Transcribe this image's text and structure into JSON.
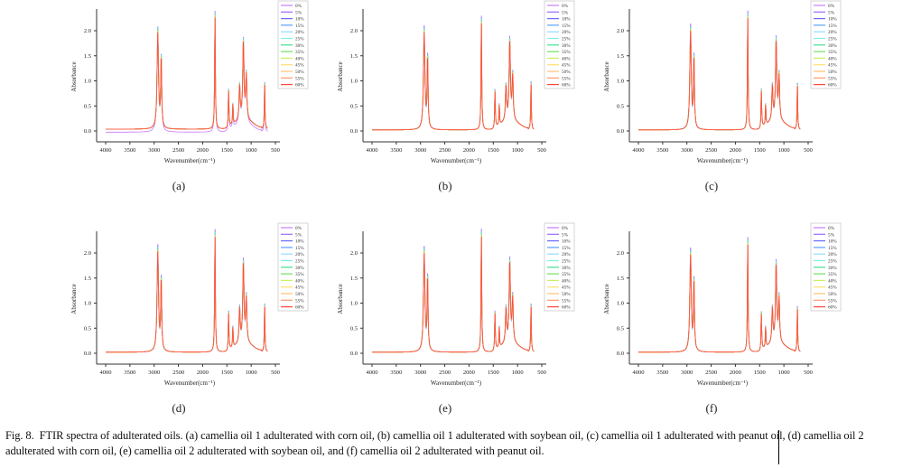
{
  "figure": {
    "caption_label": "Fig. 8.",
    "caption_text": "FTIR spectra of adulterated oils. (a) camellia oil 1 adulterated with corn oil, (b) camellia oil 1 adulterated with soybean oil, (c) camellia oil 1 adulterated with peanut oil, (d) camellia oil 2 adulterated with corn oil, (e) camellia oil 2 adulterated with soybean oil, and (f) camellia oil 2 adulterated with peanut oil."
  },
  "legend": [
    "0%",
    "5%",
    "10%",
    "15%",
    "20%",
    "25%",
    "30%",
    "35%",
    "40%",
    "45%",
    "50%",
    "55%",
    "60%"
  ],
  "series_colors": [
    "#c77dff",
    "#9b6bff",
    "#6a6bff",
    "#5aa0ff",
    "#8fdcff",
    "#7ff0e8",
    "#40e090",
    "#6fe060",
    "#c8f060",
    "#ffe070",
    "#ffc070",
    "#ff9a70",
    "#ff4a3a"
  ],
  "chart_data": [
    {
      "type": "line",
      "panel_label": "(a)",
      "xlabel": "Wavenumber(cm⁻¹)",
      "ylabel": "Absorbance",
      "xlim": [
        4000,
        500
      ],
      "ylim": [
        -0.2,
        2.4
      ],
      "xticks": [
        4000,
        3500,
        3000,
        2500,
        2000,
        1500,
        1000,
        500
      ],
      "yticks": [
        "0.0",
        "0.5",
        "1.0",
        "1.5",
        "2.0"
      ],
      "legend_position": "top-right",
      "baseline_shift_first": -0.06,
      "peaks": [
        [
          2925,
          1.95
        ],
        [
          2854,
          1.38
        ],
        [
          1745,
          2.3
        ],
        [
          1465,
          0.77
        ],
        [
          1377,
          0.45
        ],
        [
          1238,
          0.72
        ],
        [
          1160,
          1.55
        ],
        [
          1100,
          0.9
        ],
        [
          722,
          0.98
        ]
      ]
    },
    {
      "type": "line",
      "panel_label": "(b)",
      "xlabel": "Wavenumber(cm⁻¹)",
      "ylabel": "Absorbance",
      "xlim": [
        4000,
        500
      ],
      "ylim": [
        -0.2,
        2.4
      ],
      "xticks": [
        4000,
        3500,
        3000,
        2500,
        2000,
        1500,
        1000,
        500
      ],
      "yticks": [
        "0.0",
        "0.5",
        "1.0",
        "1.5",
        "2.0"
      ],
      "legend_position": "top-right",
      "baseline_shift_first": 0,
      "peaks": [
        [
          2925,
          1.97
        ],
        [
          2854,
          1.4
        ],
        [
          1745,
          2.2
        ],
        [
          1465,
          0.77
        ],
        [
          1377,
          0.45
        ],
        [
          1238,
          0.72
        ],
        [
          1160,
          1.57
        ],
        [
          1100,
          0.9
        ],
        [
          722,
          1.0
        ]
      ]
    },
    {
      "type": "line",
      "panel_label": "(c)",
      "xlabel": "Wavenumber(cm⁻¹)",
      "ylabel": "Absorbance",
      "xlim": [
        4000,
        500
      ],
      "ylim": [
        -0.2,
        2.4
      ],
      "xticks": [
        4000,
        3500,
        3000,
        2500,
        2000,
        1500,
        1000,
        500
      ],
      "yticks": [
        "0.0",
        "0.5",
        "1.0",
        "1.5",
        "2.0"
      ],
      "legend_position": "top-right",
      "baseline_shift_first": 0,
      "peaks": [
        [
          2925,
          2.0
        ],
        [
          2854,
          1.4
        ],
        [
          1745,
          2.3
        ],
        [
          1465,
          0.78
        ],
        [
          1377,
          0.45
        ],
        [
          1238,
          0.72
        ],
        [
          1160,
          1.58
        ],
        [
          1100,
          0.9
        ],
        [
          722,
          0.97
        ]
      ]
    },
    {
      "type": "line",
      "panel_label": "(d)",
      "xlabel": "Wavenumber(cm⁻¹)",
      "ylabel": "Absorbance",
      "xlim": [
        4000,
        500
      ],
      "ylim": [
        -0.2,
        2.4
      ],
      "xticks": [
        4000,
        3500,
        3000,
        2500,
        2000,
        1500,
        1000,
        500
      ],
      "yticks": [
        "0.0",
        "0.5",
        "1.0",
        "1.5",
        "2.0"
      ],
      "legend_position": "top-right",
      "baseline_shift_first": 0,
      "peaks": [
        [
          2925,
          2.03
        ],
        [
          2854,
          1.4
        ],
        [
          1745,
          2.37
        ],
        [
          1465,
          0.78
        ],
        [
          1377,
          0.45
        ],
        [
          1238,
          0.72
        ],
        [
          1160,
          1.58
        ],
        [
          1100,
          0.9
        ],
        [
          722,
          1.0
        ]
      ]
    },
    {
      "type": "line",
      "panel_label": "(e)",
      "xlabel": "Wavenumber(cm⁻¹)",
      "ylabel": "Absorbance",
      "xlim": [
        4000,
        500
      ],
      "ylim": [
        -0.2,
        2.4
      ],
      "xticks": [
        4000,
        3500,
        3000,
        2500,
        2000,
        1500,
        1000,
        500
      ],
      "yticks": [
        "0.0",
        "0.5",
        "1.0",
        "1.5",
        "2.0"
      ],
      "legend_position": "top-right",
      "baseline_shift_first": 0,
      "peaks": [
        [
          2925,
          2.0
        ],
        [
          2854,
          1.43
        ],
        [
          1745,
          2.38
        ],
        [
          1465,
          0.78
        ],
        [
          1377,
          0.45
        ],
        [
          1238,
          0.72
        ],
        [
          1160,
          1.6
        ],
        [
          1100,
          0.9
        ],
        [
          722,
          1.0
        ]
      ]
    },
    {
      "type": "line",
      "panel_label": "(f)",
      "xlabel": "Wavenumber(cm⁻¹)",
      "ylabel": "Absorbance",
      "xlim": [
        4000,
        500
      ],
      "ylim": [
        -0.2,
        2.4
      ],
      "xticks": [
        4000,
        3500,
        3000,
        2500,
        2000,
        1500,
        1000,
        500
      ],
      "yticks": [
        "0.0",
        "0.5",
        "1.0",
        "1.5",
        "2.0"
      ],
      "legend_position": "top-right",
      "baseline_shift_first": 0,
      "peaks": [
        [
          2925,
          1.97
        ],
        [
          2854,
          1.38
        ],
        [
          1745,
          2.22
        ],
        [
          1465,
          0.77
        ],
        [
          1377,
          0.45
        ],
        [
          1238,
          0.72
        ],
        [
          1160,
          1.55
        ],
        [
          1100,
          0.9
        ],
        [
          722,
          0.95
        ]
      ]
    }
  ]
}
